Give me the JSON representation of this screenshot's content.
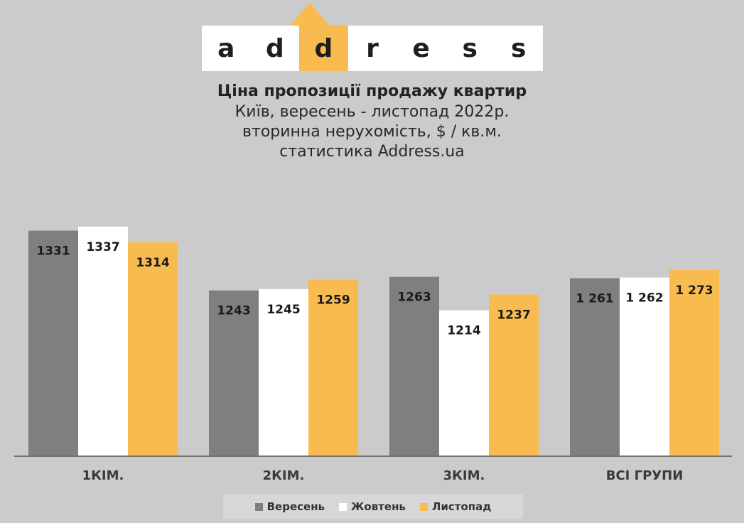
{
  "logo": {
    "letters": [
      "a",
      "d",
      "d",
      "r",
      "e",
      "s",
      "s"
    ],
    "accent_index": 2,
    "accent_color": "#f8bb4f"
  },
  "chart_data": {
    "type": "bar",
    "title": "Ціна пропозиції продажу квартир",
    "subtitle_lines": [
      "Київ, вересень - листопад 2022р.",
      "вторинна нерухомість, $ / кв.м.",
      "статистика Address.ua"
    ],
    "categories": [
      "1КІМ.",
      "2КІМ.",
      "3КІМ.",
      "ВСІ ГРУПИ"
    ],
    "series": [
      {
        "name": "Вересень",
        "color": "#7f7f7f",
        "values": [
          1331,
          1243,
          1263,
          1261
        ],
        "labels": [
          "1331",
          "1243",
          "1263",
          "1 261"
        ]
      },
      {
        "name": "Жовтень",
        "color": "#ffffff",
        "values": [
          1337,
          1245,
          1214,
          1262
        ],
        "labels": [
          "1337",
          "1245",
          "1214",
          "1 262"
        ]
      },
      {
        "name": "Листопад",
        "color": "#f8bb4f",
        "values": [
          1314,
          1259,
          1237,
          1273
        ],
        "labels": [
          "1314",
          "1259",
          "1237",
          "1 273"
        ]
      }
    ],
    "ylim": [
      1000,
      1340
    ],
    "grid": false,
    "legend_position": "bottom"
  }
}
